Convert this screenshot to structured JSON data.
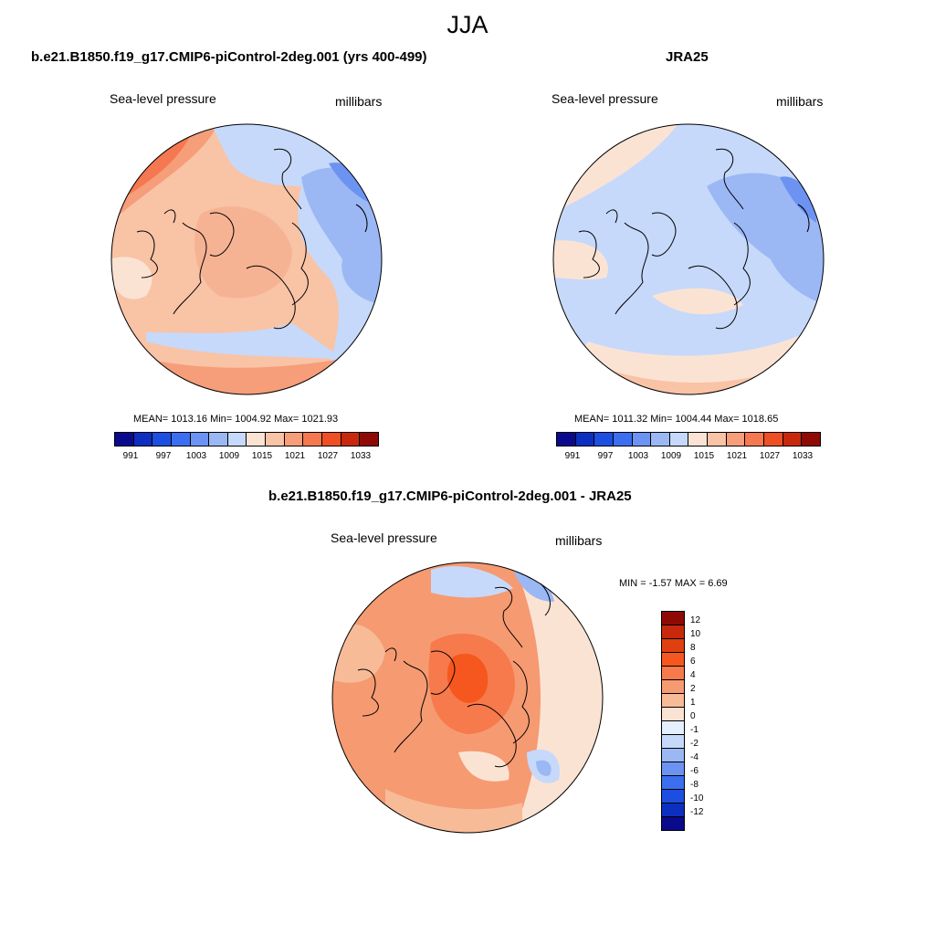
{
  "title": "JJA",
  "units": "millibars",
  "variable": "Sea-level pressure",
  "panels": {
    "model": {
      "title": "b.e21.B1850.f19_g17.CMIP6-piControl-2deg.001 (yrs 400-499)",
      "stats": "MEAN= 1013.16  Min= 1004.92  Max= 1021.93"
    },
    "obs": {
      "title": "JRA25",
      "stats": "MEAN= 1011.32  Min= 1004.44  Max= 1018.65"
    },
    "diff": {
      "title": "b.e21.B1850.f19_g17.CMIP6-piControl-2deg.001 - JRA25",
      "stats": "MIN =  -1.57 MAX =   6.69"
    }
  },
  "colorbar_abs": {
    "colors": [
      "#0a0a8c",
      "#0d2fbf",
      "#1c4fe0",
      "#3b6ff0",
      "#6c93f2",
      "#9bb8f5",
      "#c6d9fa",
      "#fbe3d4",
      "#f9c3a6",
      "#f69d79",
      "#f57850",
      "#ee4f24",
      "#c8290d",
      "#8f0a05"
    ],
    "ticks": [
      "991",
      "997",
      "1003",
      "1009",
      "1015",
      "1021",
      "1027",
      "1033"
    ]
  },
  "colorbar_diff": {
    "colors": [
      "#8f0a05",
      "#c8290d",
      "#e0400f",
      "#f6571e",
      "#f67a4b",
      "#f69a72",
      "#f8bb98",
      "#fbe3d4",
      "#e4efff",
      "#c6d9fa",
      "#9bb8f5",
      "#6c93f2",
      "#3b6ff0",
      "#1c4fe0",
      "#0d2fbf",
      "#0a0a8c"
    ],
    "ticks": [
      "12",
      "10",
      "8",
      "6",
      "4",
      "2",
      "1",
      "0",
      "-1",
      "-2",
      "-4",
      "-6",
      "-8",
      "-10",
      "-12"
    ]
  }
}
